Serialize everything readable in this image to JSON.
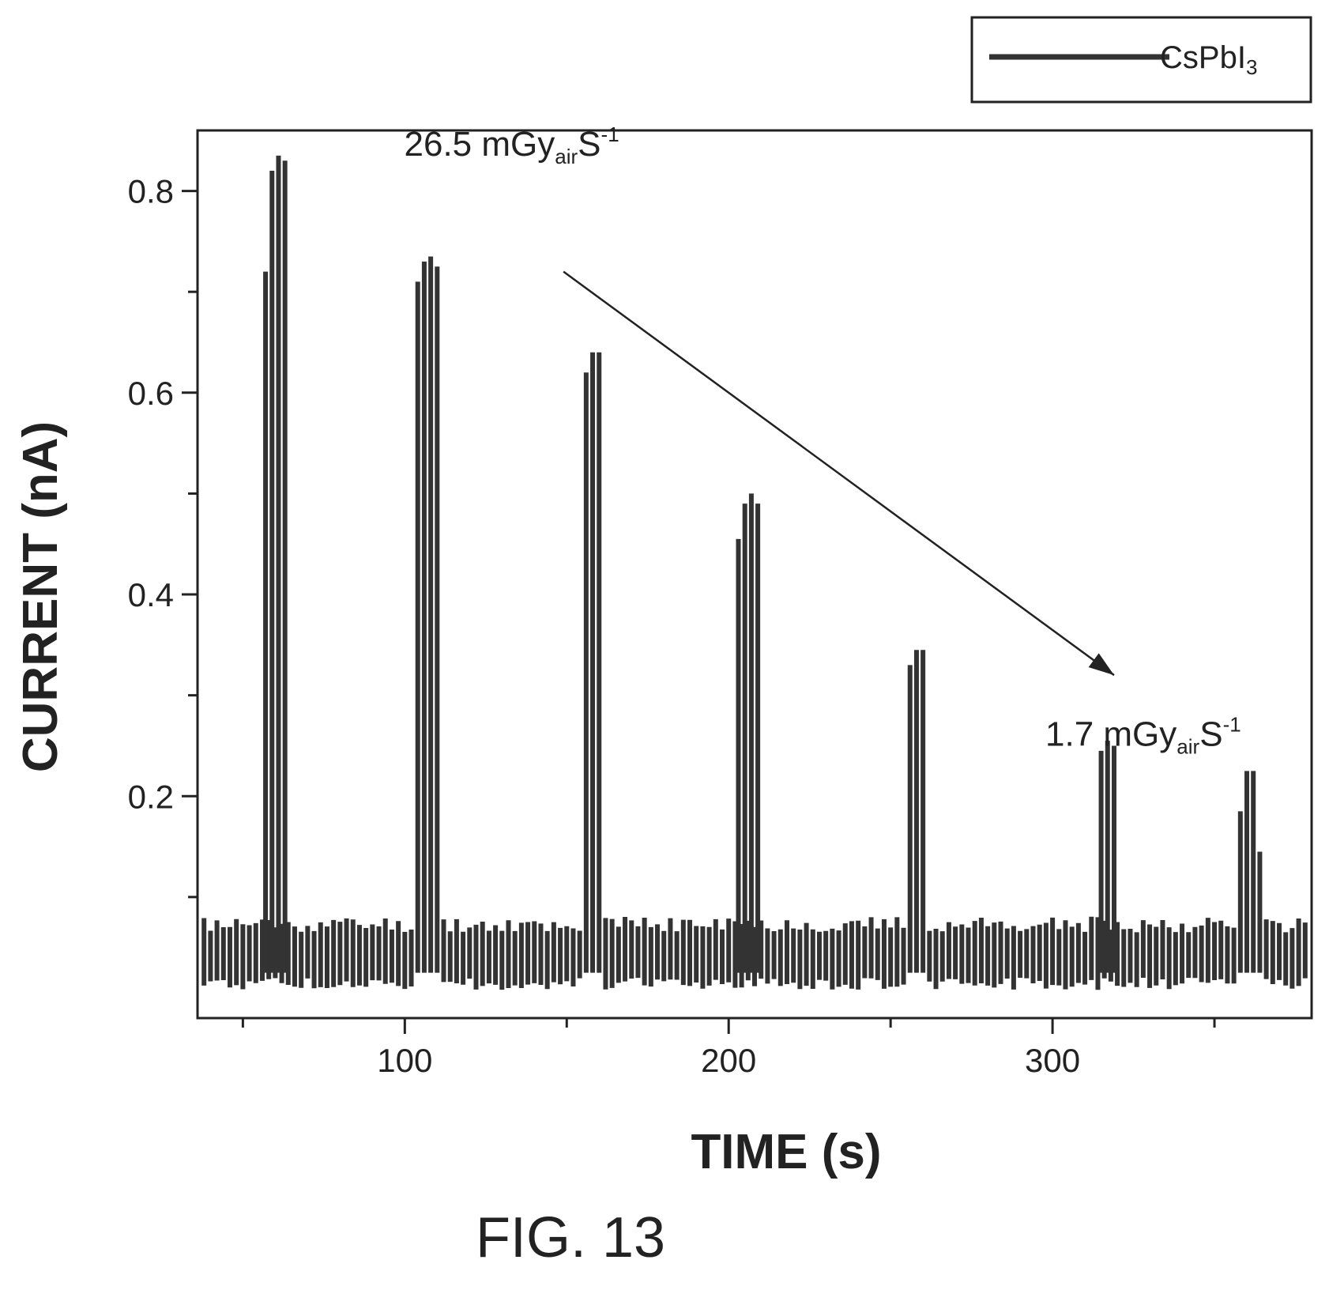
{
  "chart_data": {
    "type": "line",
    "xlabel": "TIME (s)",
    "ylabel": "CURRENT (nA)",
    "xlim": [
      36,
      380
    ],
    "ylim": [
      -0.02,
      0.86
    ],
    "x_ticks": [
      100,
      200,
      300
    ],
    "x_minor_ticks": [
      50,
      150,
      250,
      350
    ],
    "y_ticks": [
      0.2,
      0.4,
      0.6,
      0.8
    ],
    "y_minor_ticks": [
      0.1,
      0.3,
      0.5,
      0.7
    ],
    "grid": false,
    "legend_position": "top-right, outside plot",
    "series": [
      {
        "name": "CsPbI3",
        "name_main": "CsPbI",
        "name_sub": "3",
        "color": "#333333",
        "style": "vertical oscillation bars",
        "sample_step": 2.0,
        "baseline_lower": 0.02,
        "baseline_upper": 0.065,
        "baseline_noise": 0.012,
        "pulses": [
          {
            "time": 57,
            "heights": [
              0.72,
              0.82,
              0.835,
              0.83
            ]
          },
          {
            "time": 104,
            "heights": [
              0.71,
              0.73,
              0.735,
              0.725
            ]
          },
          {
            "time": 156,
            "heights": [
              0.62,
              0.64,
              0.64
            ]
          },
          {
            "time": 203,
            "heights": [
              0.455,
              0.49,
              0.5,
              0.49
            ]
          },
          {
            "time": 256,
            "heights": [
              0.33,
              0.345,
              0.345
            ]
          },
          {
            "time": 315,
            "heights": [
              0.245,
              0.255,
              0.25
            ]
          },
          {
            "time": 358,
            "heights": [
              0.185,
              0.225,
              0.225,
              0.145
            ]
          }
        ]
      }
    ],
    "annotations": [
      {
        "main": "26.5 mGy",
        "sub": "air",
        "suffix": "S",
        "sup": "-1",
        "x": 133,
        "y": 0.835
      },
      {
        "main": "1.7 mGy",
        "sub": "air",
        "suffix": "S",
        "sup": "-1",
        "x": 328,
        "y": 0.25
      }
    ],
    "arrow": {
      "from": [
        149,
        0.72
      ],
      "to": [
        319,
        0.32
      ]
    }
  },
  "figure_label": "FIG. 13"
}
